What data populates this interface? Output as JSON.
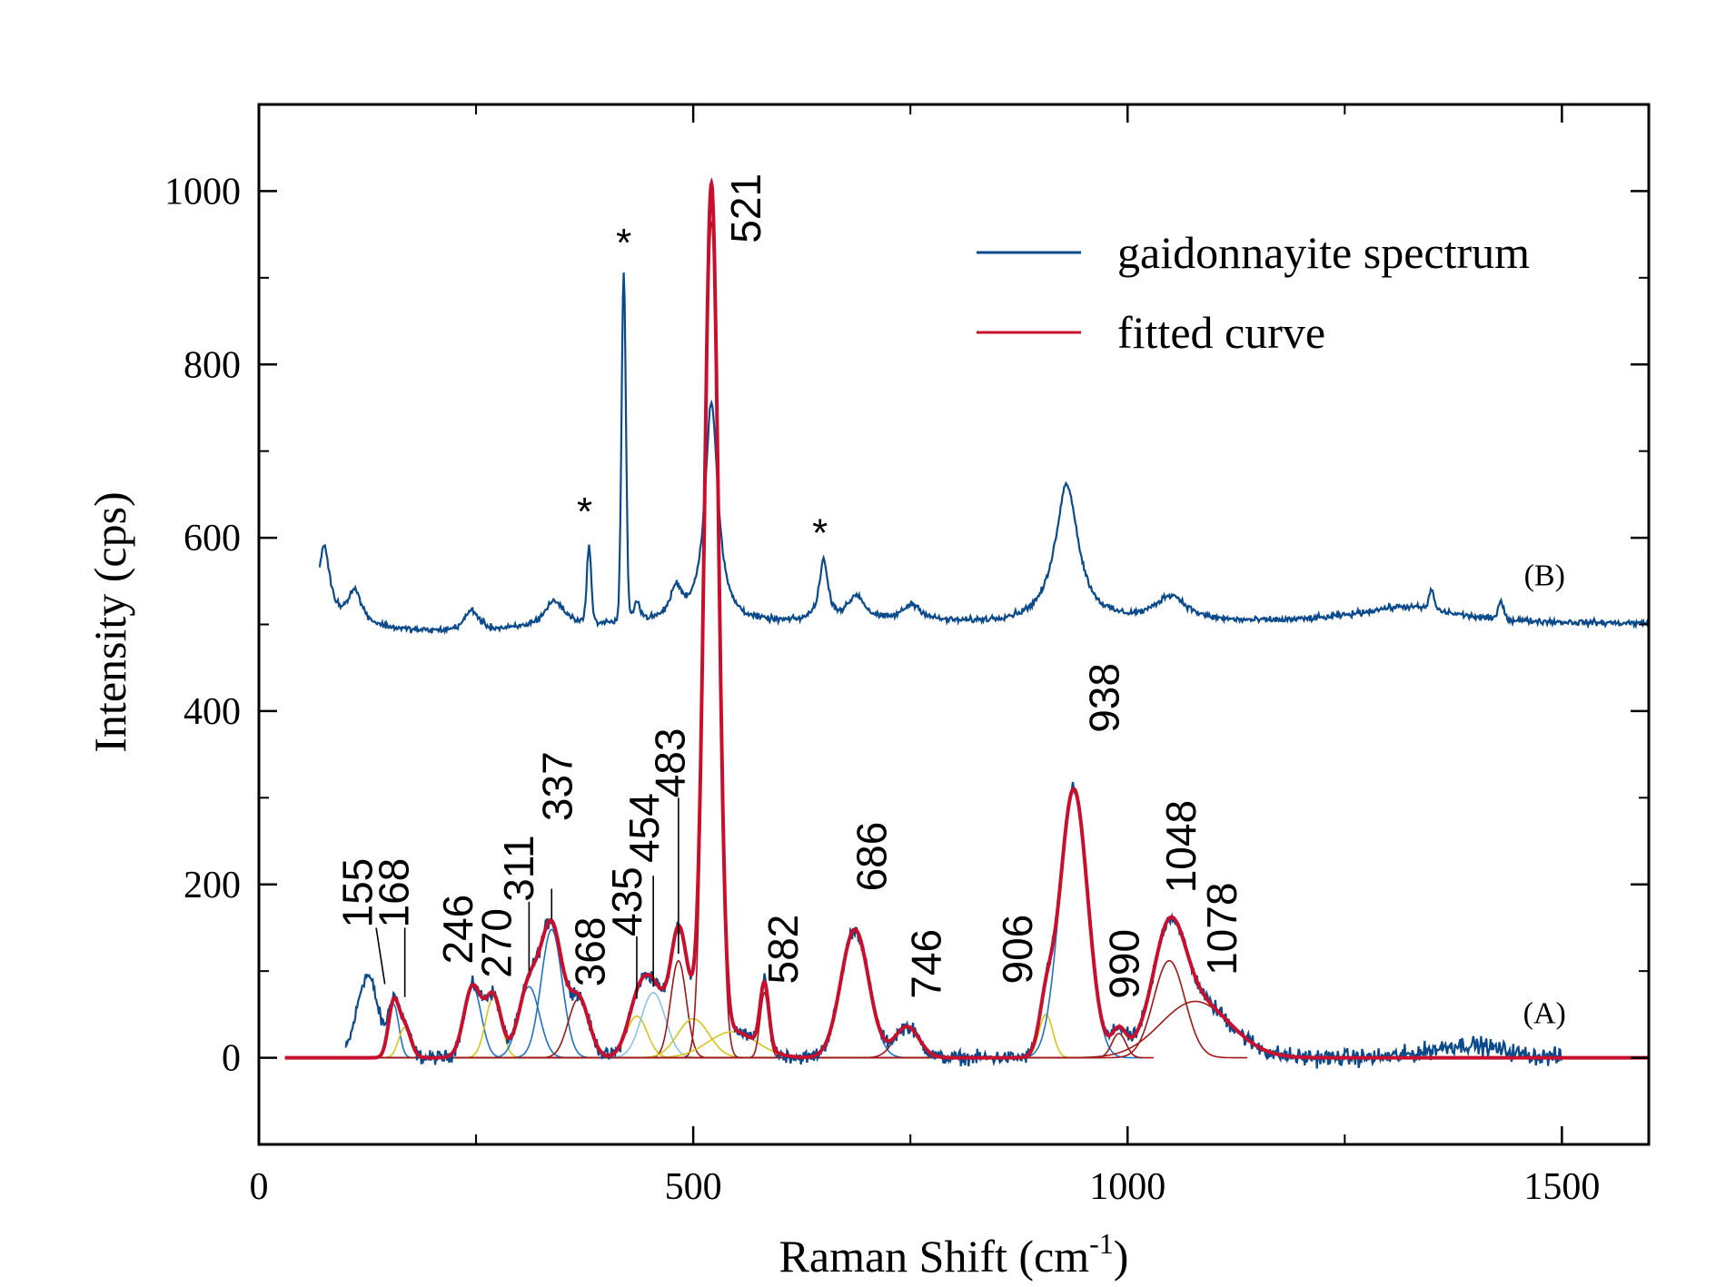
{
  "chart_data": {
    "type": "line",
    "xlabel": "Raman Shift (cm",
    "xlabel_sup": "-1",
    "xlabel_close": ")",
    "ylabel": "Intensity (cps)",
    "xlim": [
      0,
      1600
    ],
    "ylim": [
      -100,
      1100
    ],
    "x_ticks": [
      0,
      500,
      1000,
      1500
    ],
    "x_minor_ticks": [
      250,
      750,
      1250
    ],
    "y_ticks": [
      0,
      200,
      400,
      600,
      800,
      1000
    ],
    "y_minor_ticks": [
      100,
      300,
      500,
      700,
      900
    ],
    "grid": false,
    "legend_position": "top-right",
    "legend": [
      {
        "label": "gaidonnayite spectrum",
        "color": "#0b4a8b"
      },
      {
        "label": "fitted curve",
        "color": "#c8102e"
      }
    ],
    "trace_labels": [
      {
        "text": "(A)",
        "x": 1480,
        "y": 40
      },
      {
        "text": "(B)",
        "x": 1480,
        "y": 545
      }
    ],
    "colors": {
      "spectrum": "#0b4a8b",
      "fit": "#c8102e",
      "component_blue": "#1e73c8",
      "component_yellow": "#d6c51a",
      "component_red": "#a01818",
      "component_lightblue": "#8cc4e8"
    },
    "spectrum_A_range": [
      100,
      1500
    ],
    "spectrum_A_broad_features": [
      {
        "x": 125,
        "height": 95,
        "width": 12
      },
      {
        "x": 1390,
        "height": 15,
        "width": 40
      }
    ],
    "fitted_components": [
      {
        "center": 155,
        "height": 62,
        "width": 6,
        "color": "component_blue"
      },
      {
        "center": 168,
        "height": 35,
        "width": 7,
        "color": "component_yellow"
      },
      {
        "center": 246,
        "height": 82,
        "width": 10,
        "color": "component_blue"
      },
      {
        "center": 270,
        "height": 70,
        "width": 9,
        "color": "component_yellow"
      },
      {
        "center": 311,
        "height": 82,
        "width": 12,
        "color": "component_blue"
      },
      {
        "center": 337,
        "height": 148,
        "width": 12,
        "color": "component_blue"
      },
      {
        "center": 368,
        "height": 68,
        "width": 12,
        "color": "component_red"
      },
      {
        "center": 435,
        "height": 48,
        "width": 12,
        "color": "component_yellow"
      },
      {
        "center": 454,
        "height": 75,
        "width": 14,
        "color": "component_lightblue"
      },
      {
        "center": 483,
        "height": 112,
        "width": 9,
        "color": "component_red"
      },
      {
        "center": 500,
        "height": 45,
        "width": 18,
        "color": "component_yellow"
      },
      {
        "center": 521,
        "height": 965,
        "width": 8,
        "color": "component_red"
      },
      {
        "center": 545,
        "height": 30,
        "width": 28,
        "color": "component_yellow"
      },
      {
        "center": 582,
        "height": 75,
        "width": 5,
        "color": "component_red"
      },
      {
        "center": 686,
        "height": 148,
        "width": 16,
        "color": "component_blue"
      },
      {
        "center": 746,
        "height": 36,
        "width": 14,
        "color": "component_red"
      },
      {
        "center": 906,
        "height": 50,
        "width": 8,
        "color": "component_yellow"
      },
      {
        "center": 938,
        "height": 310,
        "width": 16,
        "color": "component_blue"
      },
      {
        "center": 990,
        "height": 28,
        "width": 8,
        "color": "component_red"
      },
      {
        "center": 1048,
        "height": 112,
        "width": 18,
        "color": "component_red"
      },
      {
        "center": 1078,
        "height": 65,
        "width": 40,
        "color": "component_red"
      }
    ],
    "peak_labels": [
      {
        "text": "155",
        "x": 155,
        "leader": [
          [
            145,
            85
          ],
          [
            135,
            150
          ]
        ],
        "tx": 130,
        "ty": 150
      },
      {
        "text": "168",
        "x": 168,
        "leader": [
          [
            168,
            70
          ],
          [
            168,
            150
          ]
        ],
        "tx": 172,
        "ty": 150
      },
      {
        "text": "246",
        "x": 246,
        "tx": 246,
        "ty": 108
      },
      {
        "text": "270",
        "x": 270,
        "tx": 290,
        "ty": 92
      },
      {
        "text": "311",
        "x": 311,
        "leader": [
          [
            311,
            100
          ],
          [
            311,
            180
          ]
        ],
        "tx": 316,
        "ty": 180
      },
      {
        "text": "337",
        "x": 337,
        "leader": [
          [
            337,
            160
          ],
          [
            337,
            195
          ]
        ],
        "tx": 360,
        "ty": 273
      },
      {
        "text": "368",
        "x": 368,
        "tx": 398,
        "ty": 82
      },
      {
        "text": "435",
        "x": 435,
        "leader": [
          [
            435,
            68
          ],
          [
            435,
            140
          ]
        ],
        "tx": 440,
        "ty": 140
      },
      {
        "text": "454",
        "x": 454,
        "leader": [
          [
            454,
            82
          ],
          [
            454,
            210
          ]
        ],
        "tx": 460,
        "ty": 225
      },
      {
        "text": "483",
        "x": 483,
        "leader": [
          [
            483,
            120
          ],
          [
            483,
            300
          ]
        ],
        "tx": 490,
        "ty": 300
      },
      {
        "text": "521",
        "x": 521,
        "tx": 577,
        "ty": 940
      },
      {
        "text": "582",
        "x": 582,
        "tx": 620,
        "ty": 85
      },
      {
        "text": "686",
        "x": 686,
        "tx": 722,
        "ty": 192
      },
      {
        "text": "746",
        "x": 746,
        "tx": 785,
        "ty": 68
      },
      {
        "text": "906",
        "x": 906,
        "tx": 890,
        "ty": 85
      },
      {
        "text": "938",
        "x": 938,
        "tx": 990,
        "ty": 375
      },
      {
        "text": "990",
        "x": 990,
        "tx": 1013,
        "ty": 68
      },
      {
        "text": "1048",
        "x": 1048,
        "tx": 1078,
        "ty": 190
      },
      {
        "text": "1078",
        "x": 1078,
        "tx": 1125,
        "ty": 95
      }
    ],
    "spectrum_B_baseline": 500,
    "spectrum_B_range": [
      70,
      1600
    ],
    "spectrum_B_peaks": [
      {
        "x": 75,
        "height": 90,
        "width": 8
      },
      {
        "x": 110,
        "height": 40,
        "width": 10
      },
      {
        "x": 245,
        "height": 25,
        "width": 10
      },
      {
        "x": 340,
        "height": 30,
        "width": 14
      },
      {
        "x": 380,
        "height": 88,
        "width": 2.5
      },
      {
        "x": 420,
        "height": 400,
        "width": 2.5
      },
      {
        "x": 435,
        "height": 25,
        "width": 4
      },
      {
        "x": 480,
        "height": 35,
        "width": 8
      },
      {
        "x": 521,
        "height": 255,
        "width": 9
      },
      {
        "x": 650,
        "height": 70,
        "width": 6
      },
      {
        "x": 688,
        "height": 30,
        "width": 12
      },
      {
        "x": 752,
        "height": 20,
        "width": 14
      },
      {
        "x": 930,
        "height": 160,
        "width": 16
      },
      {
        "x": 1050,
        "height": 30,
        "width": 22
      },
      {
        "x": 1320,
        "height": 20,
        "width": 70
      },
      {
        "x": 1350,
        "height": 22,
        "width": 3
      },
      {
        "x": 1430,
        "height": 22,
        "width": 3
      }
    ],
    "asterisks": [
      {
        "text": "*",
        "x": 375,
        "y": 615
      },
      {
        "text": "*",
        "x": 420,
        "y": 925
      },
      {
        "text": "*",
        "x": 646,
        "y": 590
      }
    ]
  }
}
